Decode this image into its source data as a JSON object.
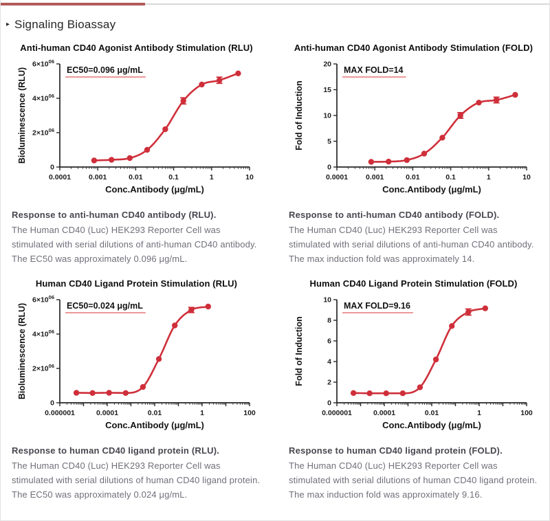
{
  "page": {
    "heading": "Signaling Bioassay",
    "bullet": "▸"
  },
  "theme": {
    "curve_red": "#cf2f3a",
    "underline_red": "#e05a5a",
    "divider_red": "#b35a5a",
    "divider_gray": "#d8d8d8",
    "axis_color": "#262626"
  },
  "chart_data": [
    {
      "type": "scatter",
      "title": "Anti-human CD40 Agonist Antibody Stimulation (RLU)",
      "annotation": "EC50=0.096 μg/mL",
      "xlabel": "Conc.Antibody (μg/mL)",
      "ylabel": "Bioluminescence (RLU)",
      "x_scale": "log",
      "xlog_range": [
        -4,
        1
      ],
      "x_ticks": [
        {
          "exp": -4,
          "label": "0.0001"
        },
        {
          "exp": -3,
          "label": "0.001"
        },
        {
          "exp": -2,
          "label": "0.01"
        },
        {
          "exp": -1,
          "label": "0.1"
        },
        {
          "exp": 0,
          "label": "1"
        },
        {
          "exp": 1,
          "label": "10"
        }
      ],
      "ylim": [
        0,
        6000000
      ],
      "y_ticks": [
        {
          "value": 0,
          "label": "0"
        },
        {
          "value": 2000000,
          "label": "2×10^06"
        },
        {
          "value": 4000000,
          "label": "4×10^06"
        },
        {
          "value": 6000000,
          "label": "6×10^06"
        }
      ],
      "points": [
        {
          "x": 0.0008,
          "y": 380000,
          "err": 0
        },
        {
          "x": 0.0023,
          "y": 420000,
          "err": 0
        },
        {
          "x": 0.007,
          "y": 520000,
          "err": 0
        },
        {
          "x": 0.02,
          "y": 1000000,
          "err": 0
        },
        {
          "x": 0.06,
          "y": 2200000,
          "err": 0
        },
        {
          "x": 0.18,
          "y": 3850000,
          "err": 180000
        },
        {
          "x": 0.55,
          "y": 4800000,
          "err": 0
        },
        {
          "x": 1.6,
          "y": 5050000,
          "err": 180000
        },
        {
          "x": 5.0,
          "y": 5450000,
          "err": 0
        }
      ]
    },
    {
      "type": "scatter",
      "title": "Anti-human CD40 Agonist Antibody Stimulation (FOLD)",
      "annotation": "MAX FOLD=14",
      "xlabel": "Conc.Antibody (μg/mL)",
      "ylabel": "Fold of Induction",
      "x_scale": "log",
      "xlog_range": [
        -4,
        1
      ],
      "x_ticks": [
        {
          "exp": -4,
          "label": "0.0001"
        },
        {
          "exp": -3,
          "label": "0.001"
        },
        {
          "exp": -2,
          "label": "0.01"
        },
        {
          "exp": -1,
          "label": "0.1"
        },
        {
          "exp": 0,
          "label": "1"
        },
        {
          "exp": 1,
          "label": "10"
        }
      ],
      "ylim": [
        0,
        20
      ],
      "y_ticks": [
        {
          "value": 0,
          "label": "0"
        },
        {
          "value": 5,
          "label": "5"
        },
        {
          "value": 10,
          "label": "10"
        },
        {
          "value": 15,
          "label": "15"
        },
        {
          "value": 20,
          "label": "20"
        }
      ],
      "points": [
        {
          "x": 0.0008,
          "y": 1.0,
          "err": 0
        },
        {
          "x": 0.0023,
          "y": 1.05,
          "err": 0
        },
        {
          "x": 0.007,
          "y": 1.35,
          "err": 0
        },
        {
          "x": 0.02,
          "y": 2.6,
          "err": 0
        },
        {
          "x": 0.06,
          "y": 5.7,
          "err": 0
        },
        {
          "x": 0.18,
          "y": 10.0,
          "err": 0.55
        },
        {
          "x": 0.55,
          "y": 12.5,
          "err": 0
        },
        {
          "x": 1.6,
          "y": 13.0,
          "err": 0.55
        },
        {
          "x": 5.0,
          "y": 14.0,
          "err": 0
        }
      ]
    },
    {
      "type": "scatter",
      "title": "Human CD40 Ligand Protein Stimulation (RLU)",
      "annotation": "EC50=0.024 μg/mL",
      "xlabel": "Conc.Antibody (μg/mL)",
      "ylabel": "Bioluminescence (RLU)",
      "x_scale": "log",
      "xlog_range": [
        -6,
        2
      ],
      "x_ticks": [
        {
          "exp": -6,
          "label": "0.000001"
        },
        {
          "exp": -5,
          "label": ""
        },
        {
          "exp": -4,
          "label": "0.0001"
        },
        {
          "exp": -3,
          "label": ""
        },
        {
          "exp": -2,
          "label": "0.01"
        },
        {
          "exp": -1,
          "label": ""
        },
        {
          "exp": 0,
          "label": "1"
        },
        {
          "exp": 1,
          "label": ""
        },
        {
          "exp": 2,
          "label": "100"
        }
      ],
      "ylim": [
        0,
        6000000
      ],
      "y_ticks": [
        {
          "value": 0,
          "label": "0"
        },
        {
          "value": 2000000,
          "label": "2×10^06"
        },
        {
          "value": 4000000,
          "label": "4×10^06"
        },
        {
          "value": 6000000,
          "label": "6×10^06"
        }
      ],
      "points": [
        {
          "x": 5e-06,
          "y": 580000,
          "err": 0
        },
        {
          "x": 2.4e-05,
          "y": 570000,
          "err": 0
        },
        {
          "x": 0.00012,
          "y": 580000,
          "err": 0
        },
        {
          "x": 0.0006,
          "y": 570000,
          "err": 0
        },
        {
          "x": 0.0032,
          "y": 920000,
          "err": 0
        },
        {
          "x": 0.015,
          "y": 2550000,
          "err": 0
        },
        {
          "x": 0.07,
          "y": 4500000,
          "err": 0
        },
        {
          "x": 0.35,
          "y": 5400000,
          "err": 150000
        },
        {
          "x": 1.8,
          "y": 5600000,
          "err": 0
        }
      ]
    },
    {
      "type": "scatter",
      "title": "Human CD40 Ligand Protein Stimulation (FOLD)",
      "annotation": "MAX FOLD=9.16",
      "xlabel": "Conc.Antibody (μg/mL)",
      "ylabel": "Fold of Induction",
      "x_scale": "log",
      "xlog_range": [
        -6,
        2
      ],
      "x_ticks": [
        {
          "exp": -6,
          "label": "0.000001"
        },
        {
          "exp": -5,
          "label": ""
        },
        {
          "exp": -4,
          "label": "0.0001"
        },
        {
          "exp": -3,
          "label": ""
        },
        {
          "exp": -2,
          "label": "0.01"
        },
        {
          "exp": -1,
          "label": ""
        },
        {
          "exp": 0,
          "label": "1"
        },
        {
          "exp": 1,
          "label": ""
        },
        {
          "exp": 2,
          "label": "100"
        }
      ],
      "ylim": [
        0,
        10
      ],
      "y_ticks": [
        {
          "value": 0,
          "label": "0"
        },
        {
          "value": 2,
          "label": "2"
        },
        {
          "value": 4,
          "label": "4"
        },
        {
          "value": 6,
          "label": "6"
        },
        {
          "value": 8,
          "label": "8"
        },
        {
          "value": 10,
          "label": "10"
        }
      ],
      "points": [
        {
          "x": 5e-06,
          "y": 0.95,
          "err": 0
        },
        {
          "x": 2.4e-05,
          "y": 0.92,
          "err": 0
        },
        {
          "x": 0.00012,
          "y": 0.92,
          "err": 0
        },
        {
          "x": 0.0006,
          "y": 0.92,
          "err": 0
        },
        {
          "x": 0.0032,
          "y": 1.5,
          "err": 0
        },
        {
          "x": 0.015,
          "y": 4.2,
          "err": 0
        },
        {
          "x": 0.07,
          "y": 7.45,
          "err": 0
        },
        {
          "x": 0.35,
          "y": 8.8,
          "err": 0.3
        },
        {
          "x": 1.8,
          "y": 9.16,
          "err": 0
        }
      ]
    }
  ],
  "captions": [
    {
      "heading": "Response to anti-human CD40 antibody (RLU).",
      "body": "The Human CD40 (Luc) HEK293 Reporter Cell was stimulated with serial dilutions of anti-human CD40 antibody. The EC50 was approximately 0.096 μg/mL."
    },
    {
      "heading": "Response to anti-human CD40 antibody (FOLD).",
      "body": "The Human CD40 (Luc) HEK293 Reporter Cell was stimulated with serial dilutions of anti-human CD40 antibody. The max induction fold was approximately 14."
    },
    {
      "heading": "Response to human CD40 ligand protein (RLU).",
      "body": "The Human CD40 (Luc) HEK293 Reporter Cell was stimulated with serial dilutions of human CD40 ligand protein. The EC50 was approximately 0.024 μg/mL."
    },
    {
      "heading": "Response to human CD40 ligand protein (FOLD).",
      "body": "The Human CD40 (Luc) HEK293 Reporter Cell was stimulated with serial dilutions of human CD40 ligand protein. The max induction fold was approximately 9.16."
    }
  ]
}
